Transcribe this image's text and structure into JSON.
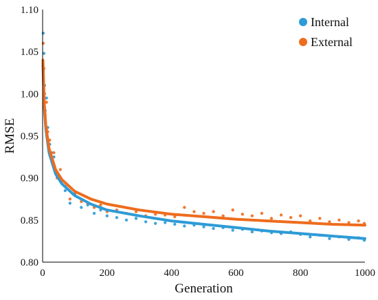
{
  "chart_data": {
    "type": "scatter",
    "title": "",
    "xlabel": "Generation",
    "ylabel": "RMSE",
    "xlim": [
      0,
      1000
    ],
    "ylim": [
      0.8,
      1.1
    ],
    "xticks": [
      0,
      200,
      400,
      600,
      800,
      1000
    ],
    "yticks": [
      0.8,
      0.85,
      0.9,
      0.95,
      1.0,
      1.05,
      1.1
    ],
    "ytick_labels": [
      "0.80",
      "0.85",
      "0.90",
      "0.95",
      "1.00",
      "1.05",
      "1.10"
    ],
    "grid": false,
    "legend_position": "top-right",
    "series": [
      {
        "name": "Internal",
        "color": "#2e9bd6",
        "trend": {
          "x": [
            1,
            5,
            10,
            20,
            40,
            60,
            100,
            150,
            200,
            300,
            400,
            500,
            600,
            700,
            800,
            900,
            1000
          ],
          "y": [
            1.035,
            0.985,
            0.958,
            0.93,
            0.905,
            0.893,
            0.879,
            0.869,
            0.862,
            0.855,
            0.849,
            0.845,
            0.841,
            0.837,
            0.834,
            0.831,
            0.828
          ]
        },
        "points": {
          "x": [
            2,
            4,
            6,
            8,
            12,
            16,
            22,
            28,
            35,
            45,
            55,
            70,
            85,
            100,
            120,
            140,
            160,
            180,
            200,
            230,
            260,
            290,
            320,
            350,
            380,
            410,
            440,
            470,
            500,
            530,
            560,
            590,
            620,
            650,
            680,
            710,
            740,
            770,
            800,
            830,
            860,
            890,
            920,
            950,
            980,
            998
          ],
          "y": [
            1.072,
            1.048,
            1.01,
            0.98,
            0.995,
            0.96,
            0.94,
            0.93,
            0.925,
            0.905,
            0.9,
            0.885,
            0.87,
            0.882,
            0.865,
            0.868,
            0.858,
            0.862,
            0.855,
            0.853,
            0.85,
            0.852,
            0.848,
            0.846,
            0.847,
            0.845,
            0.843,
            0.844,
            0.842,
            0.84,
            0.841,
            0.838,
            0.839,
            0.836,
            0.837,
            0.835,
            0.834,
            0.836,
            0.833,
            0.83,
            0.832,
            0.828,
            0.83,
            0.827,
            0.829,
            0.826
          ]
        }
      },
      {
        "name": "External",
        "color": "#ee6c1d",
        "trend": {
          "x": [
            1,
            5,
            10,
            20,
            40,
            60,
            100,
            150,
            200,
            300,
            400,
            500,
            600,
            700,
            800,
            900,
            1000
          ],
          "y": [
            1.04,
            0.99,
            0.962,
            0.935,
            0.91,
            0.898,
            0.884,
            0.875,
            0.869,
            0.862,
            0.857,
            0.854,
            0.851,
            0.849,
            0.847,
            0.845,
            0.844
          ]
        },
        "points": {
          "x": [
            2,
            4,
            6,
            8,
            12,
            16,
            22,
            28,
            35,
            45,
            55,
            70,
            85,
            100,
            120,
            140,
            160,
            180,
            200,
            230,
            260,
            290,
            320,
            350,
            380,
            410,
            440,
            470,
            500,
            530,
            560,
            590,
            620,
            650,
            680,
            710,
            740,
            770,
            800,
            830,
            860,
            890,
            920,
            950,
            980,
            998
          ],
          "y": [
            1.06,
            1.03,
            1.0,
            0.975,
            0.99,
            0.955,
            0.945,
            0.92,
            0.93,
            0.9,
            0.91,
            0.89,
            0.875,
            0.88,
            0.872,
            0.87,
            0.865,
            0.868,
            0.86,
            0.862,
            0.858,
            0.86,
            0.855,
            0.857,
            0.856,
            0.854,
            0.865,
            0.86,
            0.858,
            0.86,
            0.855,
            0.862,
            0.857,
            0.855,
            0.858,
            0.852,
            0.856,
            0.853,
            0.855,
            0.849,
            0.852,
            0.848,
            0.85,
            0.847,
            0.849,
            0.846
          ]
        }
      }
    ]
  }
}
